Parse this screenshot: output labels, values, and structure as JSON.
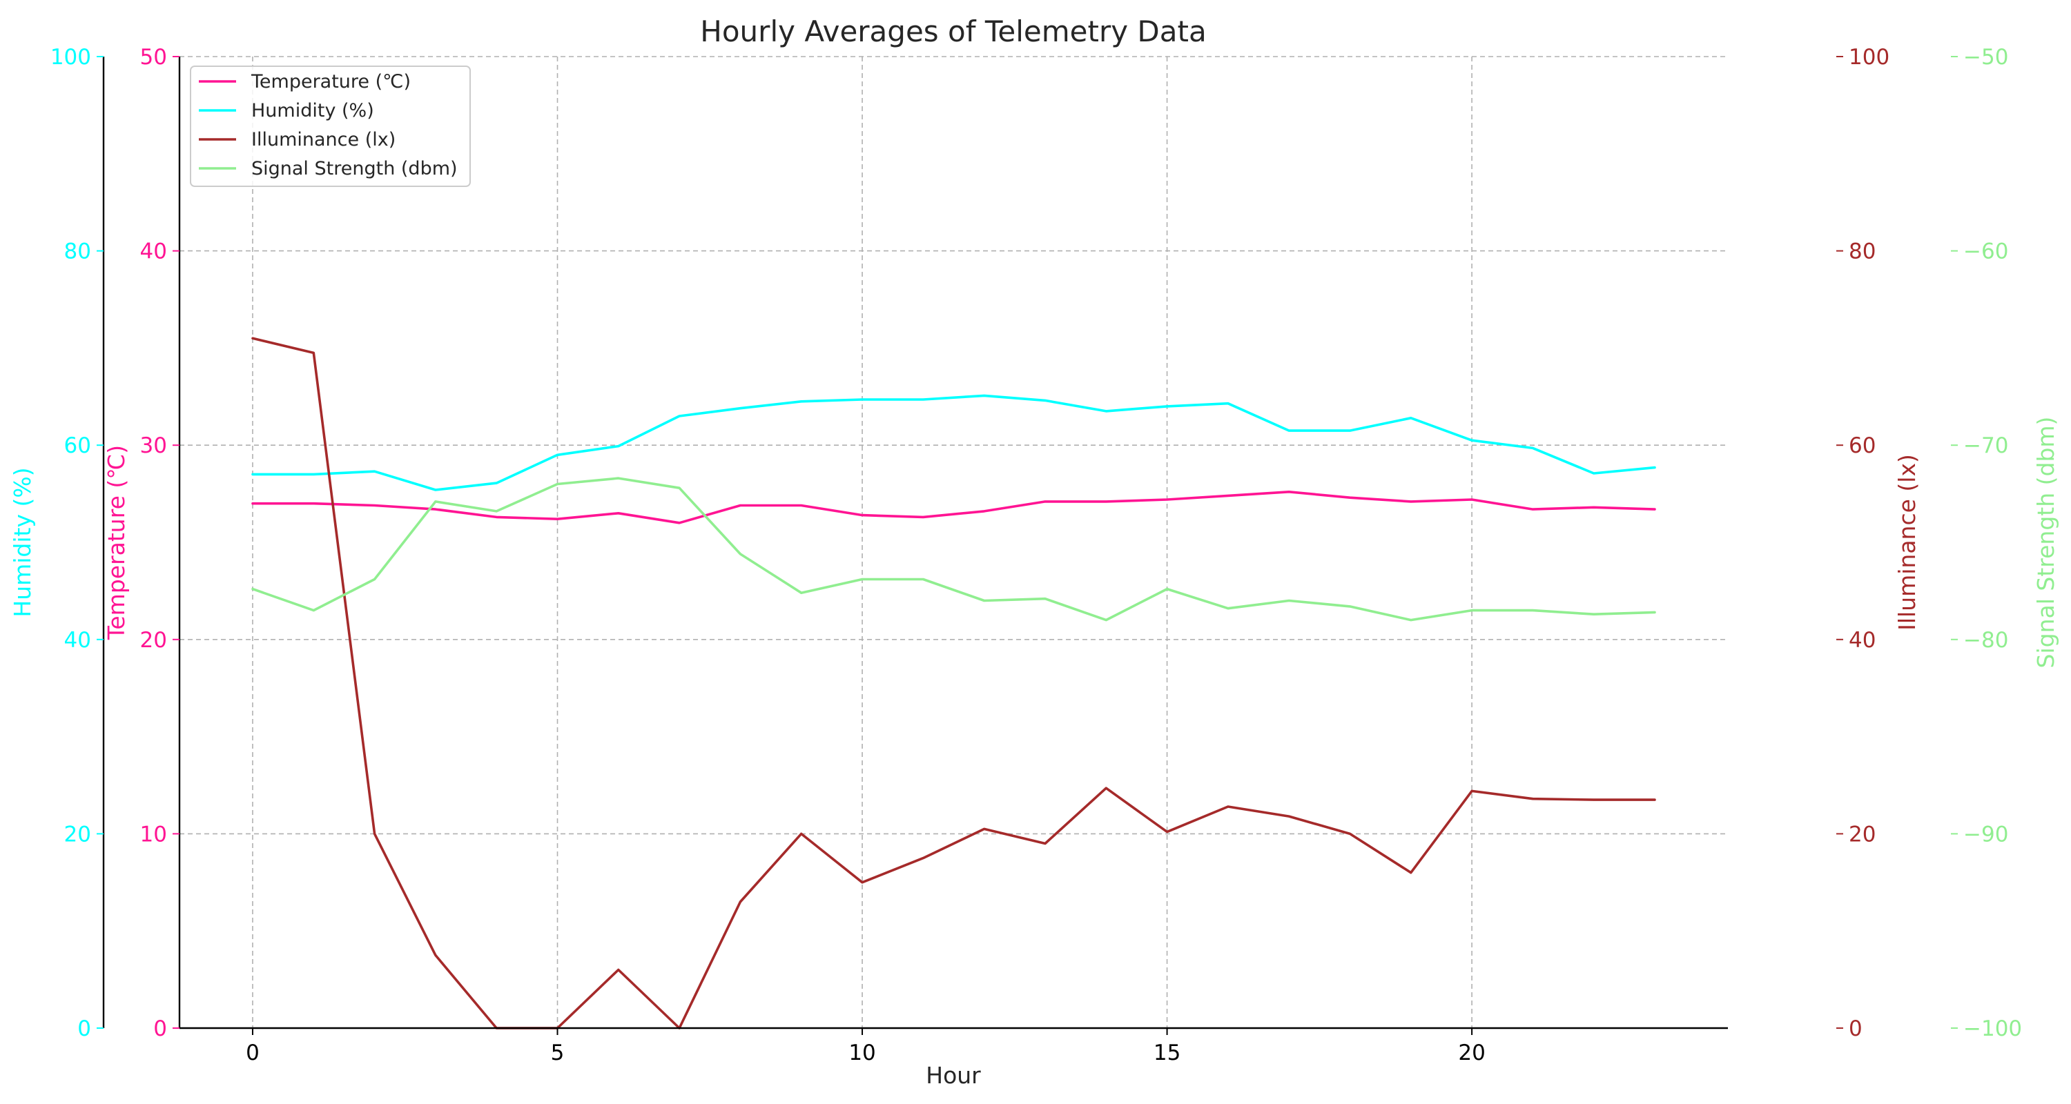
{
  "chart_data": {
    "type": "line",
    "title": "Hourly Averages of Telemetry Data",
    "xlabel": "Hour",
    "x": [
      0,
      1,
      2,
      3,
      4,
      5,
      6,
      7,
      8,
      9,
      10,
      11,
      12,
      13,
      14,
      15,
      16,
      17,
      18,
      19,
      20,
      21,
      22,
      23
    ],
    "xlim": [
      -1.2,
      24.2
    ],
    "xticks": [
      0,
      5,
      10,
      15,
      20
    ],
    "grid": true,
    "legend_position": "top-left",
    "axes": {
      "temperature": {
        "label": "Temperature (℃)",
        "range": [
          0,
          50
        ],
        "ticks": [
          0,
          10,
          20,
          30,
          40,
          50
        ],
        "color": "#ff1493",
        "side": "left"
      },
      "humidity": {
        "label": "Humidity (%)",
        "range": [
          0,
          100
        ],
        "ticks": [
          0,
          20,
          40,
          60,
          80,
          100
        ],
        "color": "#00ffff",
        "side": "left-outer"
      },
      "illuminance": {
        "label": "Illuminance (lx)",
        "range": [
          0,
          100
        ],
        "ticks": [
          0,
          20,
          40,
          60,
          80,
          100
        ],
        "color": "#a52a2a",
        "side": "right"
      },
      "signal": {
        "label": "Signal Strength (dbm)",
        "range": [
          -100,
          -50
        ],
        "ticks": [
          -100,
          -90,
          -80,
          -70,
          -60,
          -50
        ],
        "color": "#90ee90",
        "side": "right-outer"
      }
    },
    "series": [
      {
        "name": "Temperature (℃)",
        "axis": "temperature",
        "color": "#ff1493",
        "values": [
          27.0,
          27.0,
          26.9,
          26.7,
          26.3,
          26.2,
          26.5,
          26.0,
          26.9,
          26.9,
          26.4,
          26.3,
          26.6,
          27.1,
          27.1,
          27.2,
          27.4,
          27.6,
          27.3,
          27.1,
          27.2,
          26.7,
          26.8,
          26.7
        ]
      },
      {
        "name": "Humidity (%)",
        "axis": "humidity",
        "color": "#00ffff",
        "values": [
          57.0,
          57.0,
          57.3,
          55.4,
          56.1,
          59.0,
          59.9,
          63.0,
          63.8,
          64.5,
          64.7,
          64.7,
          65.1,
          64.6,
          63.5,
          64.0,
          64.3,
          61.5,
          61.5,
          62.8,
          60.5,
          59.7,
          57.1,
          57.7
        ]
      },
      {
        "name": "Illuminance (lx)",
        "axis": "illuminance",
        "color": "#a52a2a",
        "values": [
          71.0,
          69.5,
          20.0,
          7.5,
          0.0,
          0.0,
          6.0,
          0.0,
          13.0,
          20.0,
          15.0,
          17.5,
          20.5,
          19.0,
          24.7,
          20.2,
          22.8,
          21.8,
          20.0,
          16.0,
          24.4,
          23.6,
          23.5,
          23.5
        ]
      },
      {
        "name": "Signal Strength (dbm)",
        "axis": "signal",
        "color": "#90ee90",
        "values": [
          -77.4,
          -78.5,
          -76.9,
          -72.9,
          -73.4,
          -72.0,
          -71.7,
          -72.2,
          -75.6,
          -77.6,
          -76.9,
          -76.9,
          -78.0,
          -77.9,
          -79.0,
          -77.4,
          -78.4,
          -78.0,
          -78.3,
          -79.0,
          -78.5,
          -78.5,
          -78.7,
          -78.6
        ]
      }
    ]
  }
}
